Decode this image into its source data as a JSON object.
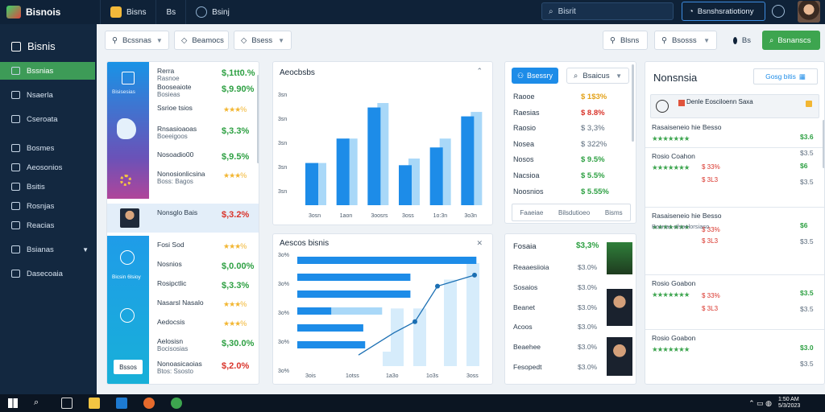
{
  "app": {
    "title": "Bisnois"
  },
  "top_tabs": [
    "Bisns",
    "Bs",
    "Bsinj"
  ],
  "top_search": "Bisrit",
  "top_pill": "Bsnshsratiotiony",
  "sidebar": {
    "title": "Bisnis",
    "items": [
      "Bssnias",
      "Nsaerla",
      "Cseroata",
      "Bosmes",
      "Aeosonios",
      "Bsitis",
      "Rosnjas",
      "Reacias",
      "Bsianas",
      "Dasecoaia"
    ]
  },
  "filters": {
    "f1": "Bcssnas",
    "f2": "Beamocs",
    "f3": "Bsess",
    "f4": "Blsns",
    "f5": "Bsosss",
    "f6": "Bs",
    "action": "Bsnanscs"
  },
  "list1": [
    {
      "name": "Rerra",
      "sub": "Rasnoe",
      "value": "$,1tt0.%",
      "stars": false,
      "color": "green"
    },
    {
      "name": "Booseaiote",
      "sub": "Bosieas",
      "value": "$,9.90%",
      "stars": false,
      "color": "green"
    },
    {
      "name": "Ssrioe tsios",
      "sub": "",
      "value": "★★★%",
      "stars": true,
      "color": "yellow"
    },
    {
      "name": "Rnsasioaoas",
      "sub": "Boeeigoos",
      "value": "$,3.3%",
      "stars": false,
      "color": "green"
    },
    {
      "name": "Nosoadio00",
      "sub": "",
      "value": "$,9.5%",
      "stars": false,
      "color": "green"
    },
    {
      "name": "Nonosionlicsina",
      "sub": "Boss: Bagos",
      "value": "★★★%",
      "stars": true,
      "color": "yellow"
    },
    {
      "name": "Nonsglo Bais",
      "sub": "",
      "value": "$,3.2%",
      "stars": false,
      "color": "red"
    },
    {
      "name": "Fosi Sod",
      "sub": "",
      "value": "★★★%",
      "stars": true,
      "color": "yellow"
    },
    {
      "name": "Nosnios",
      "sub": "",
      "value": "$,0.00%",
      "stars": false,
      "color": "green"
    },
    {
      "name": "Rosipctlic",
      "sub": "",
      "value": "$,3.3%",
      "stars": false,
      "color": "green"
    },
    {
      "name": "Nasarsl Nasalo",
      "sub": "",
      "value": "★★★%",
      "stars": true,
      "color": "yellow"
    },
    {
      "name": "Aedocsis",
      "sub": "",
      "value": "★★★%",
      "stars": true,
      "color": "yellow"
    },
    {
      "name": "Aelosisn",
      "sub": "Bocisosias",
      "value": "$,30.0%",
      "stars": false,
      "color": "green"
    },
    {
      "name": "Nonoasicaoias",
      "sub": "Btos: Ssosto",
      "value": "$,2.0%",
      "stars": false,
      "color": "red"
    }
  ],
  "list1_banner_labels": {
    "top": "Bisisesias",
    "bottom": "Bicsin 6lsioy",
    "button": "Bssos"
  },
  "chart1": {
    "title": "Aeocbsbs",
    "chart_data": {
      "type": "bar",
      "title": "Aeocbsbs",
      "categories": [
        "3osn",
        "1aon",
        "3oosrs",
        "3oss",
        "1o:3n",
        "3o3n"
      ],
      "series": [
        {
          "name": "",
          "values": [
            190,
            300,
            440,
            180,
            260,
            400
          ]
        },
        {
          "name": "",
          "values": [
            190,
            300,
            460,
            210,
            300,
            420
          ]
        }
      ],
      "yticks": [
        "3sn",
        "3sn",
        "3sn",
        "3sn",
        "3sn"
      ],
      "ylim": [
        0,
        500
      ]
    }
  },
  "chart2": {
    "title": "Aescos bisnis",
    "chart_data": {
      "type": "bar",
      "categories": [
        "3ois",
        "1otss",
        "1a3o",
        "1o3s",
        "3oss"
      ],
      "hbars": [
        {
          "value": 95,
          "light": 0
        },
        {
          "value": 60,
          "light": 0
        },
        {
          "value": 60,
          "light": 0
        },
        {
          "value": 18,
          "light": 45
        },
        {
          "value": 35,
          "light": 0
        },
        {
          "value": 36,
          "light": 0
        }
      ],
      "vbars": [
        0,
        0,
        0,
        14,
        56,
        56,
        84,
        100
      ],
      "line": [
        10,
        30,
        40,
        72,
        82
      ],
      "yticks": [
        "3o%",
        "3o%",
        "3o%",
        "3o%",
        "3o%"
      ]
    }
  },
  "list2": {
    "btn_left": "Bsessry",
    "btn_right": "Bsaicus",
    "rows": [
      {
        "name": "Raooe",
        "value": "$ 1$3%",
        "color": "yellow"
      },
      {
        "name": "Raesias",
        "value": "$ 8.8%",
        "color": "red"
      },
      {
        "name": "Raosio",
        "value": "$ 3,3%",
        "color": "grey"
      },
      {
        "name": "Nosea",
        "value": "$ 322%",
        "color": "grey"
      },
      {
        "name": "Nosos",
        "value": "$ 9.5%",
        "color": "green"
      },
      {
        "name": "Nacsioa",
        "value": "$ 5.5%",
        "color": "green"
      },
      {
        "name": "Noosnios",
        "value": "$ 5.55%",
        "color": "green"
      }
    ],
    "footer": [
      "Faaeiae",
      "Bilsdutioeo",
      "Bisms"
    ]
  },
  "list3": {
    "title": "Fosaia",
    "title_value": "$3,3%",
    "rows": [
      {
        "name": "Reaaesiioia",
        "value": "$3.0%"
      },
      {
        "name": "Sosaios",
        "value": "$3.0%"
      },
      {
        "name": "Beanet",
        "value": "$3.0%"
      },
      {
        "name": "Acoos",
        "value": "$3.0%"
      },
      {
        "name": "Beaehee",
        "value": "$3.0%"
      },
      {
        "name": "Fesopedt",
        "value": "$3.0%"
      }
    ]
  },
  "right": {
    "title": "Nonsnsia",
    "action": "Gosg bitis",
    "feature": "Denle Eosciloenn Saxa",
    "items": [
      {
        "title": "Rasaiseneio hie Besso",
        "value": "$3.6",
        "sub": "$3.5"
      },
      {
        "title": "Rosio Coahon",
        "value": "$6",
        "sub": "$3.5"
      },
      {
        "title": "Rasaiseneio hie Besso",
        "value": "$6",
        "sub": "$3.5"
      },
      {
        "title": "Rosio Goabon",
        "value": "$3.5",
        "sub": "$3.5"
      },
      {
        "title": "Rosio Goabon",
        "value": "$3.0",
        "sub": "$3.5"
      }
    ],
    "item_labels": [
      "Bosnas ofsoelorsiaso",
      "Bosnas ofsoelorsiaso"
    ],
    "stat_labels": [
      "$ 33%",
      "$ 3L3",
      "$ 33%",
      "$ 3L3",
      "$ 33%",
      "$ 3L3"
    ]
  },
  "taskbar": {
    "clock": "1:50 AM 5/3/2023"
  },
  "colors": {
    "accent": "#1d8ce8",
    "green": "#3da54f",
    "red": "#d9342b",
    "yellow": "#f2b632",
    "dark": "#0f2238"
  }
}
